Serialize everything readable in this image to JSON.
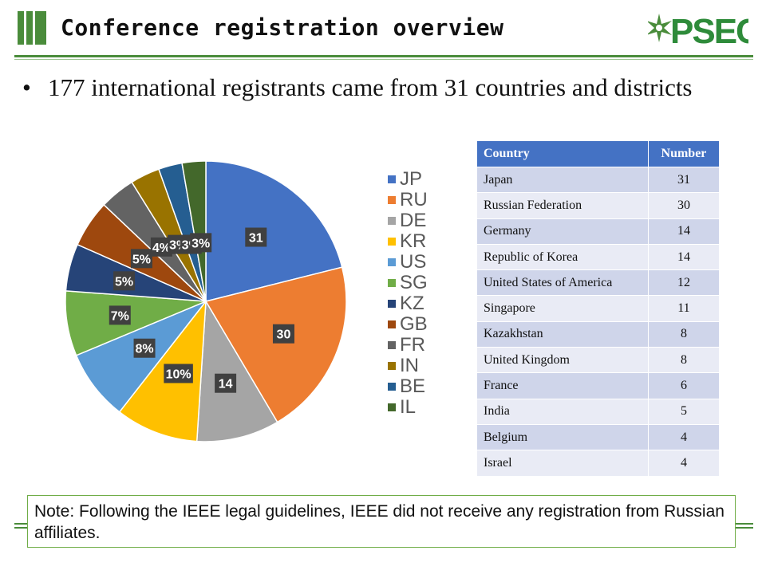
{
  "slide": {
    "title": "Conference registration overview",
    "logo_text": "PSEC",
    "bullet_symbol": "•",
    "bullet_text": "177 international registrants came from 31 countries and districts",
    "note": "Note: Following the IEEE legal guidelines, IEEE did not receive any registration from Russian affiliates."
  },
  "colors": {
    "accent_green": "#4a8c3b",
    "table_header": "#4472c4",
    "table_row_odd": "#cfd5ea",
    "table_row_even": "#e9ebf5"
  },
  "table": {
    "headers": [
      "Country",
      "Number"
    ],
    "rows": [
      [
        "Japan",
        "31"
      ],
      [
        "Russian Federation",
        "30"
      ],
      [
        "Germany",
        "14"
      ],
      [
        "Republic of Korea",
        "14"
      ],
      [
        "United States of America",
        "12"
      ],
      [
        "Singapore",
        "11"
      ],
      [
        "Kazakhstan",
        "8"
      ],
      [
        "United Kingdom",
        "8"
      ],
      [
        "France",
        "6"
      ],
      [
        "India",
        "5"
      ],
      [
        "Belgium",
        "4"
      ],
      [
        "Israel",
        "4"
      ]
    ]
  },
  "chart_data": {
    "type": "pie",
    "categories": [
      "JP",
      "RU",
      "DE",
      "KR",
      "US",
      "SG",
      "KZ",
      "GB",
      "FR",
      "IN",
      "BE",
      "IL"
    ],
    "values": [
      31,
      30,
      14,
      14,
      12,
      11,
      8,
      8,
      6,
      5,
      4,
      4
    ],
    "labels": [
      "31",
      "30",
      "14",
      "10%",
      "8%",
      "7%",
      "5%",
      "5%",
      "4%",
      "3%",
      "3%",
      "3%"
    ],
    "colors": [
      "#4472c4",
      "#ed7d31",
      "#a5a5a5",
      "#ffc000",
      "#5b9bd5",
      "#70ad47",
      "#264478",
      "#9e480e",
      "#636363",
      "#997300",
      "#255e91",
      "#43682b"
    ],
    "legend_position": "right",
    "start_angle_deg": 0,
    "direction": "clockwise"
  }
}
